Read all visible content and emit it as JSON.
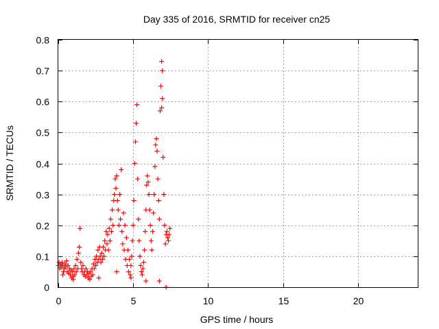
{
  "chart_data": {
    "type": "scatter",
    "title": "Day 335 of 2016, SRMTID for receiver cn25",
    "xlabel": "GPS time / hours",
    "ylabel": "SRMTID / TECUs",
    "xlim": [
      0,
      24
    ],
    "ylim": [
      0,
      0.8
    ],
    "x_ticks": [
      0,
      5,
      10,
      15,
      20
    ],
    "x_tick_labels": [
      "0",
      "5",
      "10",
      "15",
      "20"
    ],
    "y_ticks": [
      0,
      0.1,
      0.2,
      0.3,
      0.4,
      0.5,
      0.6,
      0.7,
      0.8
    ],
    "y_tick_labels": [
      "0",
      "0.1",
      "0.2",
      "0.3",
      "0.4",
      "0.5",
      "0.6",
      "0.7",
      "0.8"
    ],
    "grid": true,
    "marker": "+",
    "series": [
      {
        "name": "SRMTID",
        "color": "#ff0000",
        "points": [
          [
            0.0,
            0.07
          ],
          [
            0.05,
            0.08
          ],
          [
            0.1,
            0.06
          ],
          [
            0.15,
            0.075
          ],
          [
            0.2,
            0.065
          ],
          [
            0.25,
            0.08
          ],
          [
            0.3,
            0.07
          ],
          [
            0.35,
            0.05
          ],
          [
            0.4,
            0.06
          ],
          [
            0.45,
            0.075
          ],
          [
            0.5,
            0.065
          ],
          [
            0.55,
            0.085
          ],
          [
            0.6,
            0.05
          ],
          [
            0.65,
            0.07
          ],
          [
            0.7,
            0.045
          ],
          [
            0.75,
            0.06
          ],
          [
            0.8,
            0.04
          ],
          [
            0.85,
            0.055
          ],
          [
            0.9,
            0.03
          ],
          [
            0.95,
            0.05
          ],
          [
            1.0,
            0.035
          ],
          [
            1.05,
            0.06
          ],
          [
            1.1,
            0.04
          ],
          [
            1.15,
            0.07
          ],
          [
            1.2,
            0.05
          ],
          [
            1.25,
            0.09
          ],
          [
            1.3,
            0.06
          ],
          [
            1.35,
            0.11
          ],
          [
            1.4,
            0.13
          ],
          [
            1.45,
            0.19
          ],
          [
            1.5,
            0.08
          ],
          [
            1.55,
            0.06
          ],
          [
            1.6,
            0.05
          ],
          [
            1.65,
            0.07
          ],
          [
            1.7,
            0.04
          ],
          [
            1.75,
            0.05
          ],
          [
            1.8,
            0.035
          ],
          [
            1.85,
            0.06
          ],
          [
            1.9,
            0.04
          ],
          [
            1.95,
            0.05
          ],
          [
            2.0,
            0.03
          ],
          [
            2.05,
            0.045
          ],
          [
            2.1,
            0.025
          ],
          [
            2.15,
            0.05
          ],
          [
            2.2,
            0.035
          ],
          [
            2.25,
            0.06
          ],
          [
            2.3,
            0.04
          ],
          [
            2.35,
            0.075
          ],
          [
            2.4,
            0.06
          ],
          [
            2.45,
            0.09
          ],
          [
            2.5,
            0.07
          ],
          [
            2.55,
            0.1
          ],
          [
            2.6,
            0.08
          ],
          [
            2.65,
            0.12
          ],
          [
            2.7,
            0.09
          ],
          [
            2.75,
            0.13
          ],
          [
            2.8,
            0.1
          ],
          [
            2.85,
            0.08
          ],
          [
            2.9,
            0.11
          ],
          [
            2.95,
            0.09
          ],
          [
            3.0,
            0.13
          ],
          [
            3.05,
            0.1
          ],
          [
            3.1,
            0.15
          ],
          [
            3.15,
            0.12
          ],
          [
            3.2,
            0.18
          ],
          [
            3.25,
            0.14
          ],
          [
            3.3,
            0.17
          ],
          [
            3.35,
            0.12
          ],
          [
            3.4,
            0.19
          ],
          [
            3.45,
            0.15
          ],
          [
            3.5,
            0.22
          ],
          [
            3.55,
            0.18
          ],
          [
            3.6,
            0.25
          ],
          [
            3.65,
            0.2
          ],
          [
            3.7,
            0.28
          ],
          [
            3.75,
            0.3
          ],
          [
            3.8,
            0.35
          ],
          [
            3.85,
            0.32
          ],
          [
            3.9,
            0.36
          ],
          [
            3.95,
            0.28
          ],
          [
            4.0,
            0.25
          ],
          [
            4.05,
            0.2
          ],
          [
            4.1,
            0.3
          ],
          [
            4.15,
            0.22
          ],
          [
            4.2,
            0.38
          ],
          [
            4.25,
            0.18
          ],
          [
            4.3,
            0.14
          ],
          [
            4.35,
            0.24
          ],
          [
            4.4,
            0.12
          ],
          [
            4.45,
            0.2
          ],
          [
            4.5,
            0.09
          ],
          [
            4.55,
            0.16
          ],
          [
            4.6,
            0.07
          ],
          [
            4.65,
            0.12
          ],
          [
            4.7,
            0.05
          ],
          [
            4.75,
            0.09
          ],
          [
            4.8,
            0.04
          ],
          [
            4.85,
            0.07
          ],
          [
            4.9,
            0.1
          ],
          [
            4.95,
            0.15
          ],
          [
            5.0,
            0.2
          ],
          [
            5.05,
            0.28
          ],
          [
            5.1,
            0.4
          ],
          [
            5.15,
            0.47
          ],
          [
            5.2,
            0.53
          ],
          [
            5.25,
            0.59
          ],
          [
            5.3,
            0.35
          ],
          [
            5.35,
            0.22
          ],
          [
            5.4,
            0.15
          ],
          [
            5.45,
            0.1
          ],
          [
            5.5,
            0.07
          ],
          [
            5.55,
            0.05
          ],
          [
            5.6,
            0.04
          ],
          [
            5.65,
            0.06
          ],
          [
            5.7,
            0.08
          ],
          [
            5.75,
            0.12
          ],
          [
            5.8,
            0.18
          ],
          [
            5.85,
            0.25
          ],
          [
            5.9,
            0.33
          ],
          [
            5.95,
            0.36
          ],
          [
            6.0,
            0.34
          ],
          [
            6.05,
            0.3
          ],
          [
            6.1,
            0.25
          ],
          [
            6.15,
            0.2
          ],
          [
            6.2,
            0.15
          ],
          [
            6.25,
            0.12
          ],
          [
            6.3,
            0.18
          ],
          [
            6.35,
            0.24
          ],
          [
            6.4,
            0.3
          ],
          [
            6.45,
            0.39
          ],
          [
            6.5,
            0.46
          ],
          [
            6.55,
            0.48
          ],
          [
            6.6,
            0.44
          ],
          [
            6.65,
            0.35
          ],
          [
            6.7,
            0.28
          ],
          [
            6.75,
            0.22
          ],
          [
            6.8,
            0.57
          ],
          [
            6.85,
            0.65
          ],
          [
            6.9,
            0.73
          ],
          [
            6.95,
            0.7
          ],
          [
            7.0,
            0.42
          ],
          [
            7.05,
            0.3
          ],
          [
            7.1,
            0.2
          ],
          [
            7.15,
            0.14
          ],
          [
            7.2,
            0.17
          ],
          [
            7.25,
            0.18
          ],
          [
            7.3,
            0.16
          ],
          [
            7.35,
            0.15
          ],
          [
            7.4,
            0.17
          ],
          [
            7.45,
            0.19
          ],
          [
            7.2,
            0.0
          ],
          [
            6.75,
            0.02
          ],
          [
            5.85,
            0.02
          ],
          [
            4.85,
            0.03
          ],
          [
            3.9,
            0.05
          ],
          [
            2.7,
            0.03
          ],
          [
            1.0,
            0.025
          ],
          [
            0.3,
            0.04
          ],
          [
            6.95,
            0.61
          ],
          [
            6.9,
            0.58
          ]
        ]
      }
    ]
  }
}
